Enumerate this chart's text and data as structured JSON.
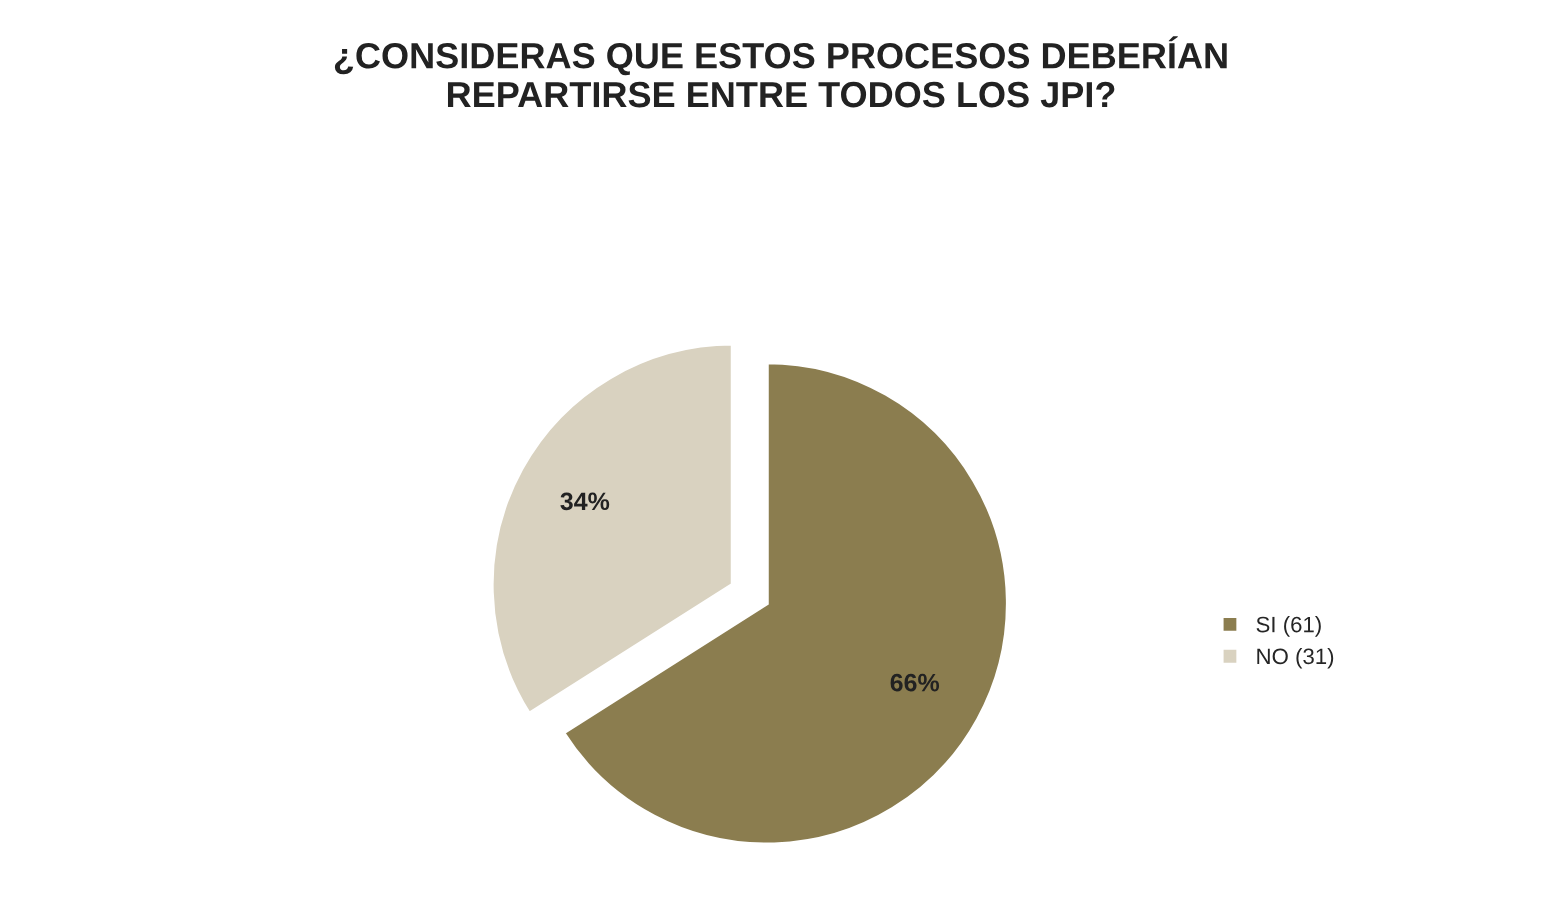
{
  "chart_data": {
    "type": "pie",
    "title": "¿CONSIDERAS QUE ESTOS PROCESOS DEBERÍAN\nREPARTIRSE ENTRE TODOS LOS JPI?",
    "categories": [
      "SI (61)",
      "NO (31)"
    ],
    "values": [
      66,
      34
    ],
    "colors": [
      "#8b7d4f",
      "#d9d2c0"
    ],
    "value_labels": [
      "66%",
      "34%"
    ],
    "legend": "right"
  }
}
